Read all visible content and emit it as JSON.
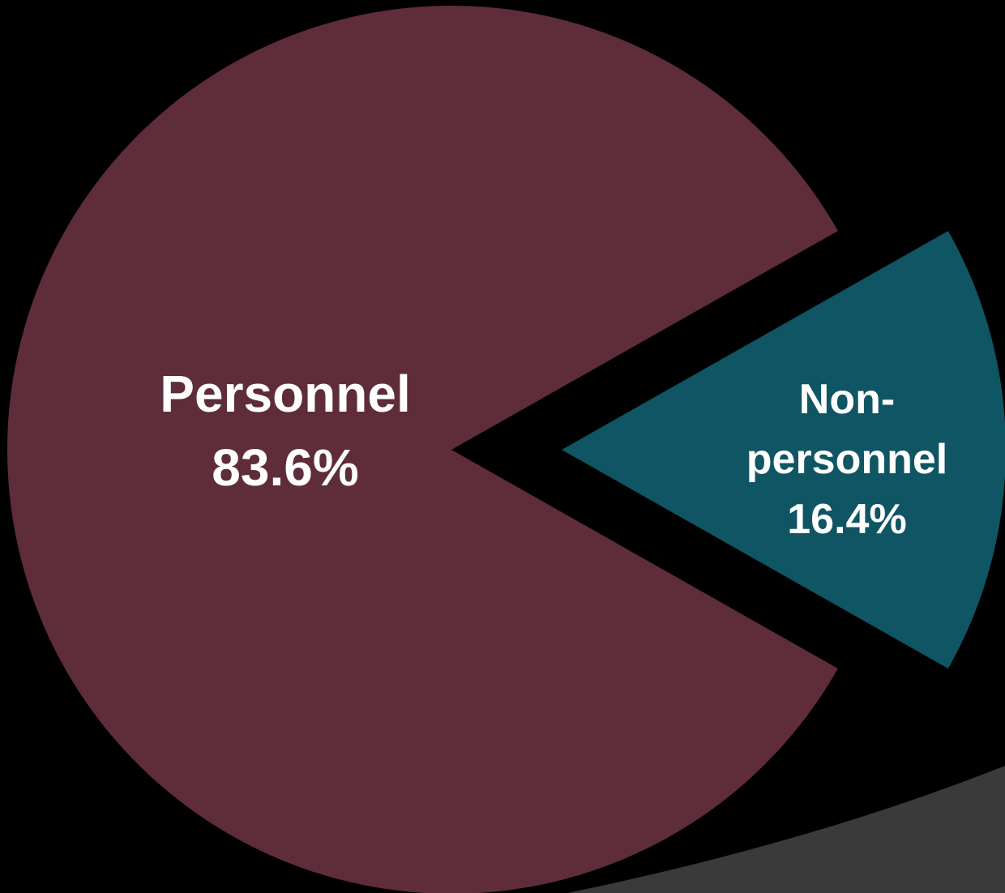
{
  "chart_data": {
    "type": "pie",
    "title": "",
    "exploded": true,
    "slices": [
      {
        "label_lines": [
          "Personnel"
        ],
        "pct_text": "83.6%",
        "value": 83.6,
        "color": "#5e2d39"
      },
      {
        "label_lines": [
          "Non-",
          "personnel"
        ],
        "pct_text": "16.4%",
        "value": 16.4,
        "color": "#105563"
      }
    ]
  },
  "background": {
    "color": "#000000",
    "accent_color": "#3a3a3a"
  }
}
